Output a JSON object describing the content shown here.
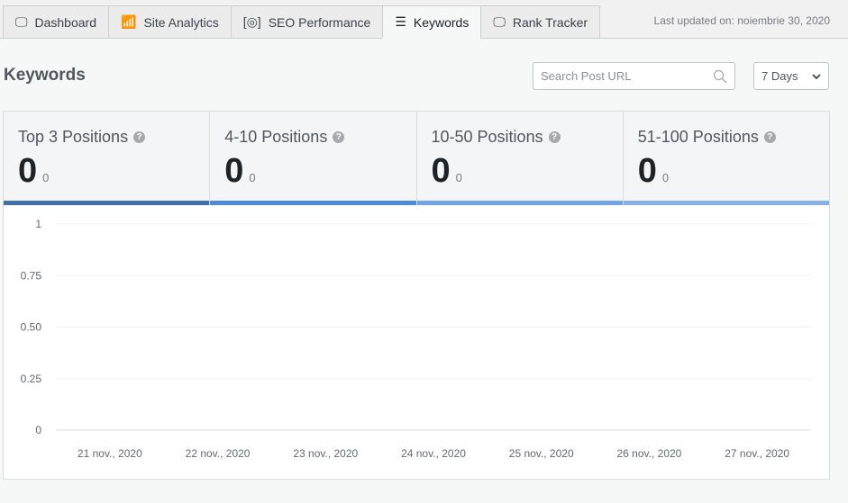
{
  "tabs": [
    {
      "label": "Dashboard",
      "icon": "monitor-icon"
    },
    {
      "label": "Site Analytics",
      "icon": "bar-chart-icon"
    },
    {
      "label": "SEO Performance",
      "icon": "eye-scan-icon"
    },
    {
      "label": "Keywords",
      "icon": "list-icon",
      "active": true
    },
    {
      "label": "Rank Tracker",
      "icon": "monitor-icon"
    }
  ],
  "last_updated": "Last updated on: noiembrie 30, 2020",
  "page_title": "Keywords",
  "search": {
    "placeholder": "Search Post URL"
  },
  "range_select": {
    "value": "7 Days"
  },
  "stats": [
    {
      "label": "Top 3 Positions",
      "value": "0",
      "change": "0",
      "color": "#4170ab"
    },
    {
      "label": "4-10 Positions",
      "value": "0",
      "change": "0",
      "color": "#4f8ad6"
    },
    {
      "label": "10-50 Positions",
      "value": "0",
      "change": "0",
      "color": "#72a3e2"
    },
    {
      "label": "51-100 Positions",
      "value": "0",
      "change": "0",
      "color": "#86b0e6"
    }
  ],
  "chart_data": {
    "type": "line",
    "categories": [
      "21 nov., 2020",
      "22 nov., 2020",
      "23 nov., 2020",
      "24 nov., 2020",
      "25 nov., 2020",
      "26 nov., 2020",
      "27 nov., 2020"
    ],
    "yticks": [
      "0",
      "0.25",
      "0.50",
      "0.75",
      "1"
    ],
    "ylim": [
      0,
      1
    ],
    "series": [],
    "grid": true
  }
}
